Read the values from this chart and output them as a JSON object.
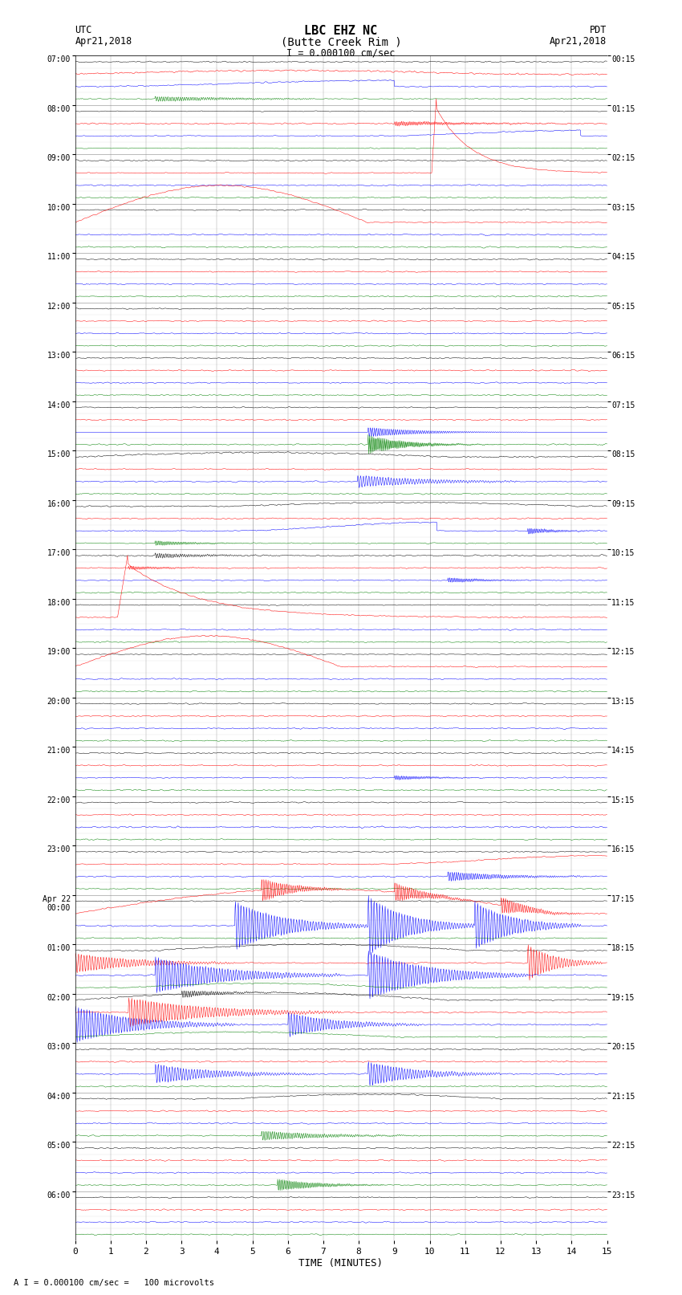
{
  "title_line1": "LBC EHZ NC",
  "title_line2": "(Butte Creek Rim )",
  "scale_label": "I = 0.000100 cm/sec",
  "footer_label": "A I = 0.000100 cm/sec =   100 microvolts",
  "xlabel": "TIME (MINUTES)",
  "left_header1": "UTC",
  "left_header2": "Apr21,2018",
  "right_header1": "PDT",
  "right_header2": "Apr21,2018",
  "utc_row_labels": [
    "07:00",
    "08:00",
    "09:00",
    "10:00",
    "11:00",
    "12:00",
    "13:00",
    "14:00",
    "15:00",
    "16:00",
    "17:00",
    "18:00",
    "19:00",
    "20:00",
    "21:00",
    "22:00",
    "23:00",
    "Apr 22\n00:00",
    "01:00",
    "02:00",
    "03:00",
    "04:00",
    "05:00",
    "06:00"
  ],
  "pdt_row_labels": [
    "00:15",
    "01:15",
    "02:15",
    "03:15",
    "04:15",
    "05:15",
    "06:15",
    "07:15",
    "08:15",
    "09:15",
    "10:15",
    "11:15",
    "12:15",
    "13:15",
    "14:15",
    "15:15",
    "16:15",
    "17:15",
    "18:15",
    "19:15",
    "20:15",
    "21:15",
    "22:15",
    "23:15"
  ],
  "n_rows": 24,
  "n_traces_per_row": 4,
  "colors": [
    "black",
    "red",
    "blue",
    "green"
  ],
  "bg_color": "white",
  "grid_color": "#888888",
  "noise_base": 0.06,
  "seed": 42
}
